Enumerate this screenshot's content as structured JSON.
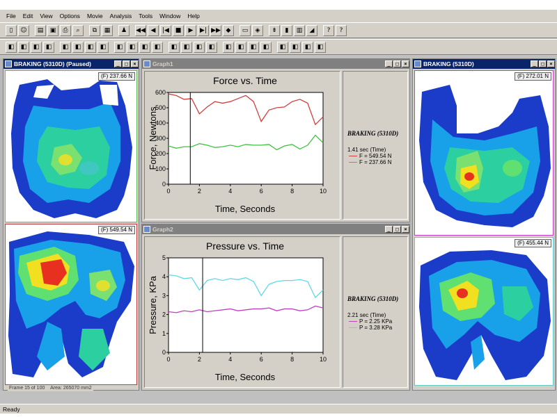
{
  "menu": [
    "File",
    "Edit",
    "View",
    "Options",
    "Movie",
    "Analysis",
    "Tools",
    "Window",
    "Help"
  ],
  "toolbar1": [
    "new-icon",
    "open-user-icon",
    "open-folder-icon",
    "save-icon",
    "print-icon",
    "print-preview-icon",
    "copy-icon",
    "paste-icon",
    "sensor-icon",
    "rewind-icon",
    "step-back-icon",
    "first-frame-icon",
    "stop-icon",
    "play-icon",
    "next-frame-icon",
    "fast-forward-icon",
    "loop-icon",
    "record-icon",
    "snapshot-icon",
    "filter-icon",
    "color-bar-icon",
    "scale-icon",
    "erase-icon",
    "help-icon",
    "context-help-icon"
  ],
  "toolbar2": [
    "contour-icon",
    "center-force-icon",
    "2d-view-icon",
    "3d-view-icon",
    "wireframe-icon",
    "rotate-icon",
    "undo-rotate-icon",
    "mirror-icon",
    "zoom-icon",
    "select-box-icon",
    "lasso-icon",
    "measure-icon",
    "grid-icon",
    "graph-icon",
    "force-graph-icon",
    "pressure-graph-icon",
    "trace-icon",
    "cof-icon",
    "peak-icon",
    "mask-icon",
    "foot-icon",
    "pedal-icon",
    "pair-icon",
    "stats-icon"
  ],
  "windows": {
    "left": {
      "title": "BRAKING (5310D)  (Paused)",
      "top_force": "(F) 237.66 N",
      "bottom_force": "(F) 549.54 N",
      "frame_status": "Frame 15 of 100",
      "area_status": "Area: 265070 mm2"
    },
    "right": {
      "title": "BRAKING (5310D)",
      "top_force": "(F) 272.01 N",
      "bottom_force": "(F) 455.44 N"
    },
    "graph1": {
      "title": "Graph1",
      "legend_title": "BRAKING (5310D)",
      "time_label": "1.41 sec (Time)",
      "entries": [
        {
          "label": "F = 549.54 N",
          "color": "#d04040"
        },
        {
          "label": "F = 237.66 N",
          "color": "#40c040"
        }
      ]
    },
    "graph2": {
      "title": "Graph2",
      "legend_title": "BRAKING (5310D)",
      "time_label": "2.21 sec (Time)",
      "entries": [
        {
          "label": "P = 2.25 KPa",
          "color": "#c040c0"
        },
        {
          "label": "P = 3.28 KPa",
          "color": "#60d8e8"
        }
      ]
    }
  },
  "chart_data": [
    {
      "type": "line",
      "title": "Force vs. Time",
      "xlabel": "Time, Seconds",
      "ylabel": "Force, Newtons",
      "xlim": [
        0,
        10
      ],
      "ylim": [
        0,
        600
      ],
      "xticks": [
        "0",
        "2",
        "4",
        "6",
        "8",
        "10"
      ],
      "yticks": [
        "0",
        "100",
        "200",
        "300",
        "400",
        "500",
        "600"
      ],
      "cursor_x": 1.41,
      "series": [
        {
          "color": "#d04040",
          "x": [
            0,
            0.5,
            1,
            1.5,
            2,
            2.5,
            3,
            3.5,
            4,
            4.5,
            5,
            5.5,
            6,
            6.5,
            7,
            7.5,
            8,
            8.5,
            9,
            9.5,
            10
          ],
          "y": [
            590,
            580,
            555,
            560,
            460,
            505,
            540,
            530,
            540,
            560,
            580,
            540,
            410,
            485,
            500,
            505,
            540,
            555,
            530,
            390,
            440
          ]
        },
        {
          "color": "#40c040",
          "x": [
            0,
            0.5,
            1,
            1.5,
            2,
            2.5,
            3,
            3.5,
            4,
            4.5,
            5,
            5.5,
            6,
            6.5,
            7,
            7.5,
            8,
            8.5,
            9,
            9.5,
            10
          ],
          "y": [
            250,
            235,
            245,
            245,
            265,
            255,
            240,
            245,
            255,
            245,
            260,
            255,
            255,
            260,
            225,
            250,
            260,
            230,
            255,
            320,
            270
          ]
        }
      ]
    },
    {
      "type": "line",
      "title": "Pressure vs. Time",
      "xlabel": "Time, Seconds",
      "ylabel": "Pressure, KPa",
      "xlim": [
        0,
        10
      ],
      "ylim": [
        0,
        5
      ],
      "xticks": [
        "0",
        "2",
        "4",
        "6",
        "8",
        "10"
      ],
      "yticks": [
        "0",
        "1",
        "2",
        "3",
        "4",
        "5"
      ],
      "cursor_x": 2.21,
      "series": [
        {
          "color": "#60d8e8",
          "x": [
            0,
            0.5,
            1,
            1.5,
            2,
            2.5,
            3,
            3.5,
            4,
            4.5,
            5,
            5.5,
            6,
            6.5,
            7,
            7.5,
            8,
            8.5,
            9,
            9.5,
            10
          ],
          "y": [
            4.1,
            4.05,
            3.9,
            3.95,
            3.3,
            3.8,
            3.9,
            3.8,
            3.9,
            3.85,
            3.95,
            3.75,
            3.0,
            3.6,
            3.75,
            3.8,
            3.8,
            3.85,
            3.75,
            2.9,
            3.3
          ]
        },
        {
          "color": "#c040c0",
          "x": [
            0,
            0.5,
            1,
            1.5,
            2,
            2.5,
            3,
            3.5,
            4,
            4.5,
            5,
            5.5,
            6,
            6.5,
            7,
            7.5,
            8,
            8.5,
            9,
            9.5,
            10
          ],
          "y": [
            2.15,
            2.1,
            2.2,
            2.15,
            2.25,
            2.15,
            2.2,
            2.25,
            2.3,
            2.2,
            2.25,
            2.3,
            2.3,
            2.35,
            2.2,
            2.3,
            2.3,
            2.2,
            2.25,
            2.45,
            2.35
          ]
        }
      ]
    }
  ],
  "status": "Ready"
}
